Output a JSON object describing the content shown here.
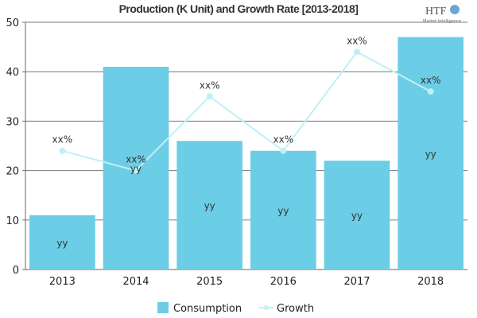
{
  "chart_data": {
    "type": "bar",
    "title": "Production (K Unit) and Growth Rate [2013-2018]",
    "categories": [
      "2013",
      "2014",
      "2015",
      "2016",
      "2017",
      "2018"
    ],
    "ylim": [
      0,
      50
    ],
    "yticks": [
      0,
      10,
      20,
      30,
      40,
      50
    ],
    "grid": true,
    "legend_position": "bottom",
    "series": [
      {
        "name": "Consumption",
        "kind": "bar",
        "color": "#6ccde6",
        "values": [
          11,
          41,
          26,
          24,
          22,
          47
        ],
        "labels": [
          "yy",
          "yy",
          "yy",
          "yy",
          "yy",
          "yy"
        ]
      },
      {
        "name": "Growth",
        "kind": "line",
        "color": "#bff0f5",
        "values": [
          24,
          20,
          35,
          24,
          44,
          36
        ],
        "labels": [
          "xx%",
          "xx%",
          "xx%",
          "xx%",
          "xx%",
          "xx%"
        ]
      }
    ]
  },
  "logo": {
    "text": "HTF",
    "subtext": "Market Intelligence"
  }
}
